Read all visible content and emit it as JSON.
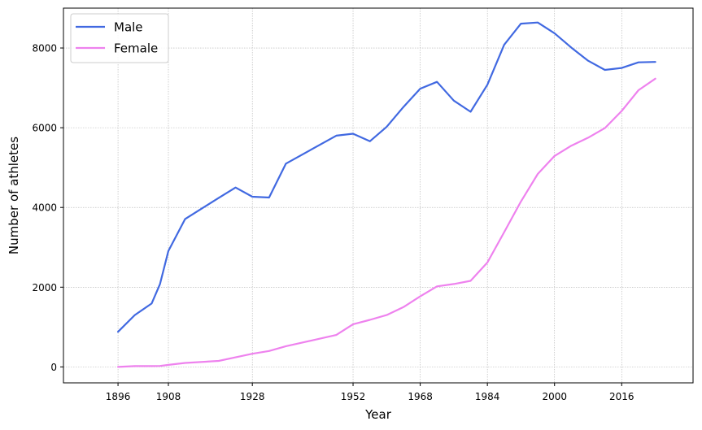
{
  "chart_data": {
    "type": "line",
    "title": "",
    "xlabel": "Year",
    "ylabel": "Number of athletes",
    "xlim": [
      1883,
      2033
    ],
    "ylim": [
      -400,
      9000
    ],
    "xticks": [
      1896,
      1908,
      1928,
      1952,
      1968,
      1984,
      2000,
      2016
    ],
    "yticks": [
      0,
      2000,
      4000,
      6000,
      8000
    ],
    "grid": true,
    "legend_position": "top-left",
    "series": [
      {
        "name": "Male",
        "color": "#4169e1",
        "points": [
          [
            1896,
            880
          ],
          [
            1900,
            1300
          ],
          [
            1904,
            1590
          ],
          [
            1906,
            2080
          ],
          [
            1908,
            2910
          ],
          [
            1912,
            3710
          ],
          [
            1920,
            4240
          ],
          [
            1924,
            4500
          ],
          [
            1928,
            4270
          ],
          [
            1932,
            4250
          ],
          [
            1936,
            5100
          ],
          [
            1948,
            5800
          ],
          [
            1952,
            5850
          ],
          [
            1956,
            5660
          ],
          [
            1960,
            6020
          ],
          [
            1964,
            6520
          ],
          [
            1968,
            6980
          ],
          [
            1972,
            7150
          ],
          [
            1976,
            6680
          ],
          [
            1980,
            6400
          ],
          [
            1984,
            7080
          ],
          [
            1988,
            8080
          ],
          [
            1992,
            8610
          ],
          [
            1996,
            8640
          ],
          [
            2000,
            8370
          ],
          [
            2004,
            8010
          ],
          [
            2008,
            7680
          ],
          [
            2012,
            7450
          ],
          [
            2016,
            7500
          ],
          [
            2020,
            7640
          ],
          [
            2024,
            7650
          ]
        ]
      },
      {
        "name": "Female",
        "color": "#ee82ee",
        "points": [
          [
            1896,
            0
          ],
          [
            1900,
            20
          ],
          [
            1904,
            20
          ],
          [
            1906,
            25
          ],
          [
            1908,
            50
          ],
          [
            1912,
            100
          ],
          [
            1920,
            150
          ],
          [
            1924,
            240
          ],
          [
            1928,
            330
          ],
          [
            1932,
            400
          ],
          [
            1936,
            520
          ],
          [
            1948,
            800
          ],
          [
            1952,
            1070
          ],
          [
            1956,
            1180
          ],
          [
            1960,
            1300
          ],
          [
            1964,
            1500
          ],
          [
            1968,
            1770
          ],
          [
            1972,
            2020
          ],
          [
            1976,
            2080
          ],
          [
            1980,
            2160
          ],
          [
            1984,
            2620
          ],
          [
            1988,
            3380
          ],
          [
            1992,
            4150
          ],
          [
            1996,
            4840
          ],
          [
            2000,
            5290
          ],
          [
            2004,
            5550
          ],
          [
            2008,
            5750
          ],
          [
            2012,
            5990
          ],
          [
            2016,
            6420
          ],
          [
            2020,
            6940
          ],
          [
            2024,
            7230
          ]
        ]
      }
    ]
  }
}
